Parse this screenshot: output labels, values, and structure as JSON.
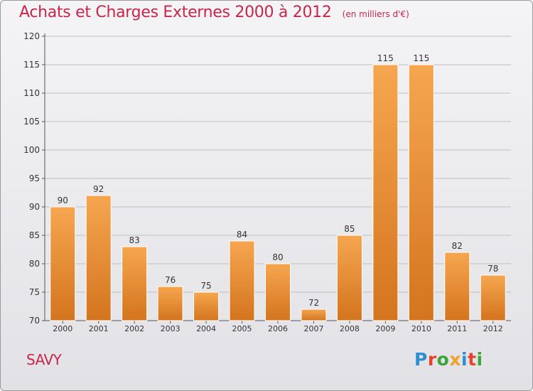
{
  "header": {
    "title": "Achats et Charges Externes 2000 à 2012",
    "subtitle": "(en milliers d'€)"
  },
  "footer": {
    "commune": "SAVY",
    "logo_text": "Proxiti",
    "logo_colors": [
      "#2c8fd3",
      "#e8412c",
      "#3aa636",
      "#f0a22a",
      "#2c8fd3",
      "#e8412c",
      "#3aa636"
    ]
  },
  "colors": {
    "accent": "#c8264a",
    "bar_top": "#f6a650",
    "bar_bottom": "#d4741e",
    "grid": "#c0c0c0"
  },
  "chart_data": {
    "type": "bar",
    "title": "Achats et Charges Externes 2000 à 2012",
    "subtitle": "(en milliers d'€)",
    "categories": [
      "2000",
      "2001",
      "2002",
      "2003",
      "2004",
      "2005",
      "2006",
      "2007",
      "2008",
      "2009",
      "2010",
      "2011",
      "2012"
    ],
    "values": [
      90,
      92,
      83,
      76,
      75,
      84,
      80,
      72,
      85,
      115,
      115,
      82,
      78
    ],
    "ylim": [
      70,
      120
    ],
    "yticks": [
      70,
      75,
      80,
      85,
      90,
      95,
      100,
      105,
      110,
      115,
      120
    ],
    "grid": true,
    "data_labels": true
  }
}
